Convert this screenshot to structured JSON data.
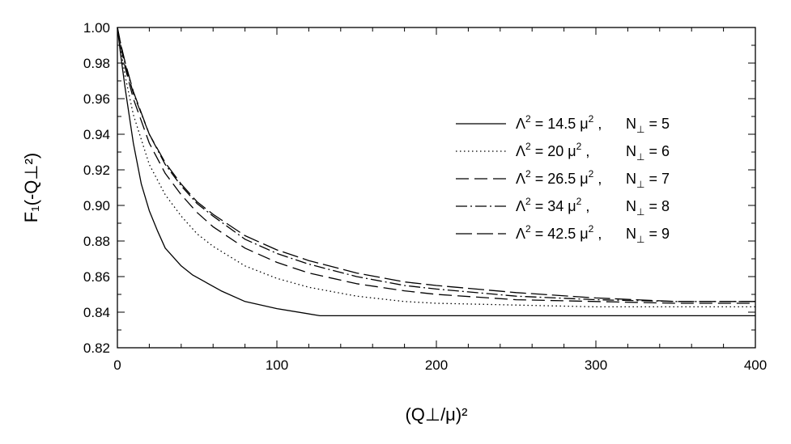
{
  "chart_data": {
    "type": "line",
    "title": "",
    "xlabel": "(Q⊥/μ)²",
    "ylabel": "F₁(-Q⊥²)",
    "xlim": [
      0,
      400
    ],
    "ylim": [
      0.82,
      1.0
    ],
    "xticks": [
      "0",
      "100",
      "200",
      "300",
      "400"
    ],
    "yticks": [
      "0.82",
      "0.84",
      "0.86",
      "0.88",
      "0.90",
      "0.92",
      "0.94",
      "0.96",
      "0.98",
      "1.00"
    ],
    "grid": false,
    "legend_position": "right",
    "series": [
      {
        "label_lambda": "14.5 μ",
        "label_n": "5",
        "dash": "solid",
        "x": [
          0,
          2,
          5,
          10,
          15,
          20,
          25,
          30,
          40,
          47,
          55,
          65,
          80,
          100,
          127,
          200,
          300,
          400
        ],
        "y": [
          1.0,
          0.985,
          0.965,
          0.935,
          0.912,
          0.897,
          0.886,
          0.876,
          0.866,
          0.861,
          0.857,
          0.852,
          0.846,
          0.842,
          0.838,
          0.838,
          0.838,
          0.838
        ]
      },
      {
        "label_lambda": "20 μ",
        "label_n": "6",
        "dash": "dotted",
        "x": [
          0,
          2,
          5,
          10,
          20,
          30,
          40,
          50,
          60,
          80,
          100,
          120,
          150,
          180,
          200,
          250,
          300,
          350,
          400
        ],
        "y": [
          1.0,
          0.988,
          0.972,
          0.951,
          0.923,
          0.906,
          0.894,
          0.884,
          0.877,
          0.866,
          0.859,
          0.854,
          0.849,
          0.846,
          0.845,
          0.844,
          0.843,
          0.843,
          0.843
        ]
      },
      {
        "label_lambda": "26.5 μ",
        "label_n": "7",
        "dash": "long-dash",
        "x": [
          0,
          2,
          5,
          10,
          20,
          30,
          40,
          50,
          60,
          80,
          100,
          120,
          150,
          180,
          200,
          250,
          300,
          350,
          400
        ],
        "y": [
          1.0,
          0.99,
          0.977,
          0.96,
          0.935,
          0.918,
          0.906,
          0.896,
          0.888,
          0.876,
          0.868,
          0.862,
          0.856,
          0.852,
          0.85,
          0.847,
          0.846,
          0.845,
          0.845
        ]
      },
      {
        "label_lambda": "34 μ",
        "label_n": "8",
        "dash": "dash-dot",
        "x": [
          0,
          2,
          5,
          10,
          20,
          30,
          40,
          50,
          60,
          80,
          100,
          120,
          150,
          180,
          200,
          250,
          300,
          350,
          400
        ],
        "y": [
          1.0,
          0.991,
          0.979,
          0.963,
          0.94,
          0.923,
          0.911,
          0.901,
          0.894,
          0.881,
          0.873,
          0.867,
          0.86,
          0.855,
          0.853,
          0.849,
          0.847,
          0.846,
          0.846
        ]
      },
      {
        "label_lambda": "42.5 μ",
        "label_n": "9",
        "dash": "long-dash-wide",
        "x": [
          0,
          2,
          5,
          10,
          20,
          30,
          40,
          50,
          60,
          80,
          100,
          120,
          150,
          180,
          200,
          250,
          300,
          350,
          400
        ],
        "y": [
          1.0,
          0.991,
          0.98,
          0.964,
          0.94,
          0.924,
          0.912,
          0.902,
          0.895,
          0.883,
          0.875,
          0.869,
          0.862,
          0.857,
          0.855,
          0.851,
          0.848,
          0.846,
          0.846
        ]
      }
    ]
  }
}
